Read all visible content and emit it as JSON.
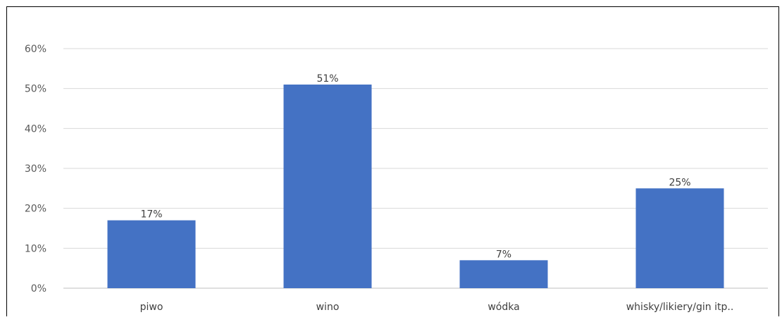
{
  "chart_data": {
    "type": "bar",
    "categories": [
      "piwo",
      "wino",
      "wódka",
      "whisky/likiery/gin itp.."
    ],
    "values": [
      17,
      51,
      7,
      25
    ],
    "data_labels": [
      "17%",
      "51%",
      "7%",
      "25%"
    ],
    "y_ticks": [
      "0%",
      "10%",
      "20%",
      "30%",
      "40%",
      "50%",
      "60%"
    ],
    "ylim": [
      0,
      60
    ],
    "title": "",
    "xlabel": "",
    "ylabel": "",
    "grid": true,
    "legend": "none",
    "colors": {
      "bar": "#4472C4",
      "gridline": "#d9d9d9",
      "axis": "#bfbfbf"
    }
  }
}
